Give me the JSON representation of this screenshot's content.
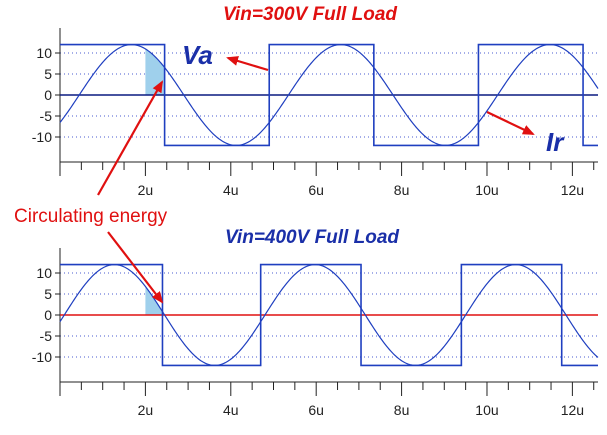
{
  "chart_data": [
    {
      "type": "line",
      "title": "Vin=300V Full Load",
      "title_color": "#e01010",
      "xlabel": "",
      "ylabel": "",
      "xlim": [
        0,
        12.6
      ],
      "ylim": [
        -15,
        15
      ],
      "x_ticks": [
        "2u",
        "4u",
        "6u",
        "8u",
        "10u",
        "12u"
      ],
      "x_tick_values": [
        2,
        4,
        6,
        8,
        10,
        12
      ],
      "y_ticks": [
        "10",
        "5",
        "0",
        "-5",
        "-10"
      ],
      "y_tick_values": [
        10,
        5,
        0,
        -5,
        -10
      ],
      "grid": "dotted",
      "series": [
        {
          "name": "Va",
          "kind": "square",
          "color": "#1f3fc0",
          "high": 12,
          "low": -12,
          "edges": [
            2.45,
            4.9,
            7.35,
            9.8,
            12.25
          ],
          "start_level": 12
        },
        {
          "name": "Ir",
          "kind": "sine",
          "color": "#1f3fc0",
          "amplitude": 12,
          "period": 4.9,
          "phase_zero_x": 0.45
        }
      ],
      "zero_line_color": "#0a1a80",
      "highlight": {
        "x_from": 2.0,
        "x_to": 2.45,
        "color": "#9fd0ec"
      }
    },
    {
      "type": "line",
      "title": "Vin=400V Full Load",
      "title_color": "#1a2fa8",
      "xlabel": "",
      "ylabel": "",
      "xlim": [
        0,
        12.6
      ],
      "ylim": [
        -15,
        15
      ],
      "x_ticks": [
        "2u",
        "4u",
        "6u",
        "8u",
        "10u",
        "12u"
      ],
      "x_tick_values": [
        2,
        4,
        6,
        8,
        10,
        12
      ],
      "y_ticks": [
        "10",
        "5",
        "0",
        "-5",
        "-10"
      ],
      "y_tick_values": [
        10,
        5,
        0,
        -5,
        -10
      ],
      "grid": "dotted",
      "series": [
        {
          "kind": "square",
          "color": "#1f3fc0",
          "high": 12,
          "low": -12,
          "edges": [
            2.4,
            4.7,
            9.4,
            11.7
          ],
          "levels": [
            12,
            -12,
            12,
            -12,
            12,
            -12
          ],
          "edge_pairs": [
            [
              2.4,
              4.7
            ],
            [
              7.05,
              9.4
            ],
            [
              11.75,
              12.6
            ]
          ]
        },
        {
          "kind": "sine",
          "color": "#1f3fc0",
          "amplitude": 12,
          "period": 4.7,
          "phase_zero_x": 0.1
        }
      ],
      "zero_line_color": "#e01010",
      "highlight": {
        "x_from": 2.0,
        "x_to": 2.4,
        "color": "#9fd0ec"
      }
    }
  ],
  "annotations": {
    "callout_text": "Circulating energy",
    "callout_color": "#e01010",
    "va_label": "Va",
    "ir_label": "Ir",
    "label_color": "#1a2fa8",
    "arrow_color": "#e01010"
  }
}
